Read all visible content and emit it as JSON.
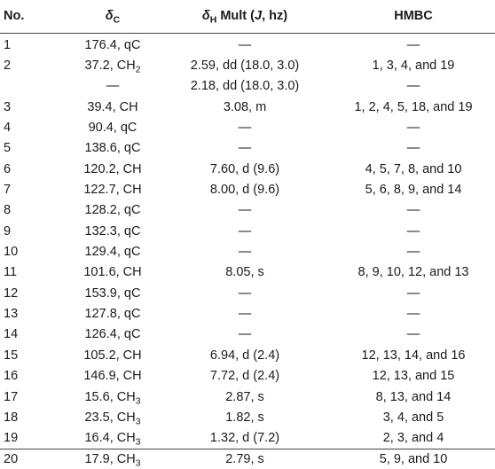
{
  "headers": {
    "no": "No.",
    "delta_c_symbol": "δ",
    "delta_c_sub": "C",
    "delta_h_symbol": "δ",
    "delta_h_sub": "H",
    "delta_h_rest_pre": " Mult (",
    "delta_h_j": "J",
    "delta_h_rest_post": ", hz)",
    "hmbc": "HMBC"
  },
  "rows": [
    {
      "no": "1",
      "c_value": "176.4, qC",
      "c_group": "",
      "c_sub": "",
      "h": "—",
      "hmbc": "—"
    },
    {
      "no": "2",
      "c_value": "37.2, CH",
      "c_group": "",
      "c_sub": "2",
      "h": "2.59, dd (18.0, 3.0)",
      "hmbc": "1, 3, 4, and 19"
    },
    {
      "no": "",
      "c_value": "—",
      "c_group": "",
      "c_sub": "",
      "h": "2.18, dd (18.0, 3.0)",
      "hmbc": "—"
    },
    {
      "no": "3",
      "c_value": "39.4, CH",
      "c_group": "",
      "c_sub": "",
      "h": "3.08, m",
      "hmbc": "1, 2, 4, 5, 18, and 19"
    },
    {
      "no": "4",
      "c_value": "90.4, qC",
      "c_group": "",
      "c_sub": "",
      "h": "—",
      "hmbc": "—"
    },
    {
      "no": "5",
      "c_value": "138.6, qC",
      "c_group": "",
      "c_sub": "",
      "h": "—",
      "hmbc": "—"
    },
    {
      "no": "6",
      "c_value": "120.2, CH",
      "c_group": "",
      "c_sub": "",
      "h": "7.60, d (9.6)",
      "hmbc": "4, 5, 7, 8, and 10"
    },
    {
      "no": "7",
      "c_value": "122.7, CH",
      "c_group": "",
      "c_sub": "",
      "h": "8.00, d (9.6)",
      "hmbc": "5, 6, 8, 9, and 14"
    },
    {
      "no": "8",
      "c_value": "128.2, qC",
      "c_group": "",
      "c_sub": "",
      "h": "—",
      "hmbc": "—"
    },
    {
      "no": "9",
      "c_value": "132.3, qC",
      "c_group": "",
      "c_sub": "",
      "h": "—",
      "hmbc": "—"
    },
    {
      "no": "10",
      "c_value": "129.4, qC",
      "c_group": "",
      "c_sub": "",
      "h": "—",
      "hmbc": "—"
    },
    {
      "no": "11",
      "c_value": "101.6, CH",
      "c_group": "",
      "c_sub": "",
      "h": "8.05, s",
      "hmbc": "8, 9, 10, 12, and 13"
    },
    {
      "no": "12",
      "c_value": "153.9, qC",
      "c_group": "",
      "c_sub": "",
      "h": "—",
      "hmbc": "—"
    },
    {
      "no": "13",
      "c_value": "127.8, qC",
      "c_group": "",
      "c_sub": "",
      "h": "—",
      "hmbc": "—"
    },
    {
      "no": "14",
      "c_value": "126.4, qC",
      "c_group": "",
      "c_sub": "",
      "h": "—",
      "hmbc": "—"
    },
    {
      "no": "15",
      "c_value": "105.2, CH",
      "c_group": "",
      "c_sub": "",
      "h": "6.94, d (2.4)",
      "hmbc": "12, 13, 14, and 16"
    },
    {
      "no": "16",
      "c_value": "146.9, CH",
      "c_group": "",
      "c_sub": "",
      "h": "7.72, d (2.4)",
      "hmbc": "12, 13, and 15"
    },
    {
      "no": "17",
      "c_value": "15.6, CH",
      "c_group": "",
      "c_sub": "3",
      "h": "2.87, s",
      "hmbc": "8, 13, and 14"
    },
    {
      "no": "18",
      "c_value": "23.5, CH",
      "c_group": "",
      "c_sub": "3",
      "h": "1.82, s",
      "hmbc": "3, 4, and 5"
    },
    {
      "no": "19",
      "c_value": "16.4, CH",
      "c_group": "",
      "c_sub": "3",
      "h": "1.32, d (7.2)",
      "hmbc": "2, 3, and 4"
    },
    {
      "no": "20",
      "c_value": "17.9, CH",
      "c_group": "",
      "c_sub": "3",
      "h": "2.79, s",
      "hmbc": "5, 9, and 10"
    }
  ]
}
